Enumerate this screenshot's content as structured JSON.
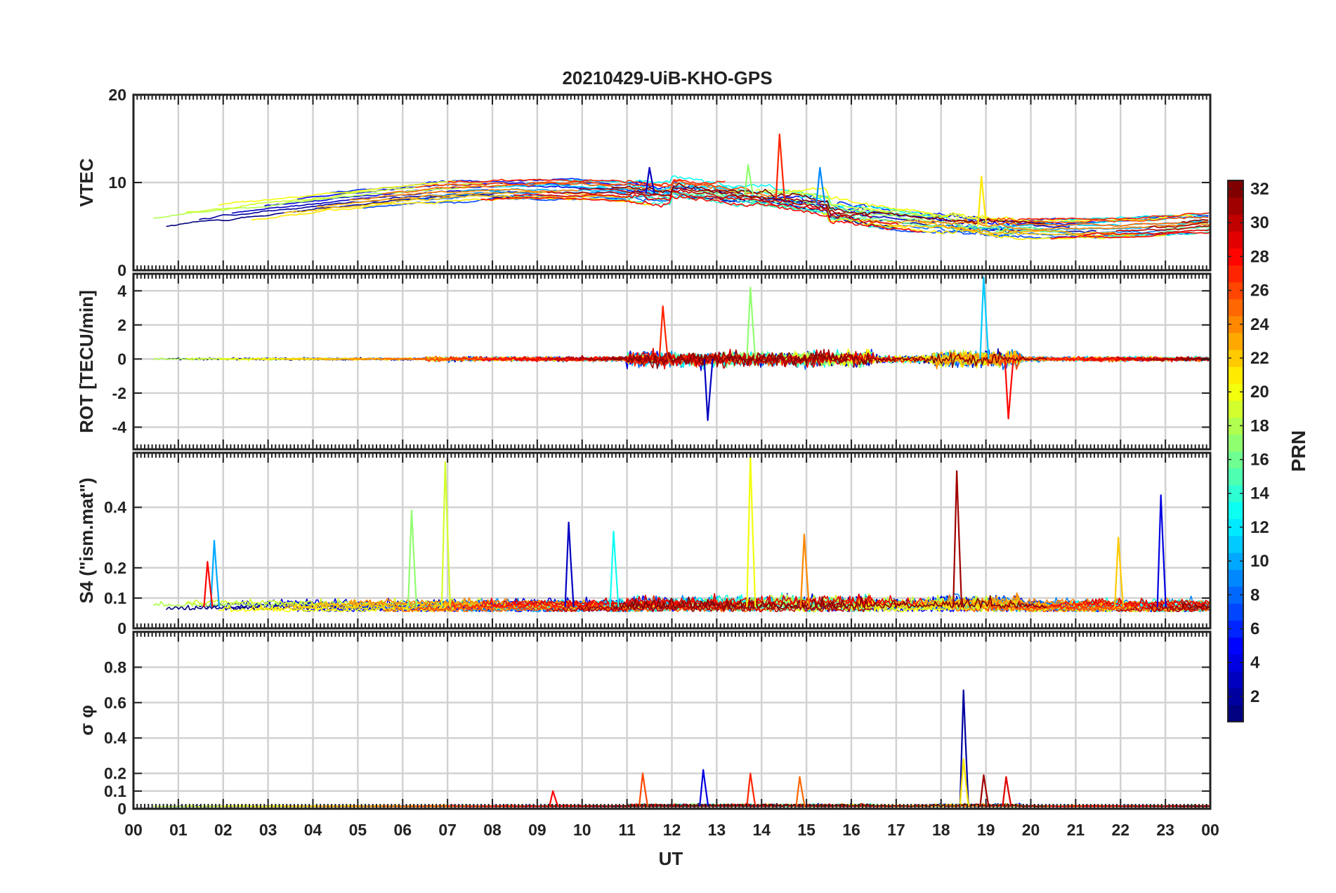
{
  "chart_data": {
    "type": "line",
    "title": "20210429-UiB-KHO-GPS",
    "xlabel": "UT",
    "x_ticks": [
      "00",
      "01",
      "02",
      "03",
      "04",
      "05",
      "06",
      "07",
      "08",
      "09",
      "10",
      "11",
      "12",
      "13",
      "14",
      "15",
      "16",
      "17",
      "18",
      "19",
      "20",
      "21",
      "22",
      "23",
      "00"
    ],
    "xlim_hours": [
      0,
      24
    ],
    "grid": true,
    "colorbar": {
      "label": "PRN",
      "range": [
        1,
        32
      ],
      "ticks": [
        "2",
        "4",
        "6",
        "8",
        "10",
        "12",
        "14",
        "16",
        "18",
        "20",
        "22",
        "24",
        "26",
        "28",
        "30",
        "32"
      ],
      "colormap": "jet",
      "location": "right"
    },
    "panels": [
      {
        "id": "vtec",
        "ylabel": "VTEC",
        "ylim": [
          0,
          20
        ],
        "yticks": [
          0,
          10,
          20
        ],
        "ytick_labels": [
          "0",
          "10",
          "20"
        ],
        "peaks": [
          {
            "x": 14.4,
            "y": 15.5,
            "prn": 27
          },
          {
            "x": 13.7,
            "y": 12.0,
            "prn": 17
          },
          {
            "x": 15.3,
            "y": 11.7,
            "prn": 9
          },
          {
            "x": 11.5,
            "y": 11.7,
            "prn": 3
          },
          {
            "x": 18.9,
            "y": 10.7,
            "prn": 21
          }
        ]
      },
      {
        "id": "rot",
        "ylabel": "ROT [TECU/min]",
        "ylim": [
          -5.3,
          5
        ],
        "yticks": [
          -4,
          -2,
          0,
          2,
          4
        ],
        "ytick_labels": [
          "-4",
          "-2",
          "0",
          "2",
          "4"
        ],
        "peaks": [
          {
            "x": 18.95,
            "y": 4.8,
            "prn": 11
          },
          {
            "x": 13.75,
            "y": 4.2,
            "prn": 17
          },
          {
            "x": 12.8,
            "y": -3.6,
            "prn": 3
          },
          {
            "x": 19.5,
            "y": -3.5,
            "prn": 28
          },
          {
            "x": 11.8,
            "y": 3.1,
            "prn": 27
          }
        ]
      },
      {
        "id": "s4",
        "ylabel": "S4 (\"ism.mat\")",
        "ylim": [
          0,
          0.58
        ],
        "yticks": [
          0,
          0.1,
          0.2,
          0.4
        ],
        "ytick_labels": [
          "0",
          "0.1",
          "0.2",
          "0.4"
        ],
        "peaks": [
          {
            "x": 13.75,
            "y": 0.57,
            "prn": 20
          },
          {
            "x": 6.95,
            "y": 0.55,
            "prn": 19
          },
          {
            "x": 18.35,
            "y": 0.52,
            "prn": 31
          },
          {
            "x": 22.9,
            "y": 0.44,
            "prn": 4
          },
          {
            "x": 6.2,
            "y": 0.39,
            "prn": 17
          },
          {
            "x": 9.7,
            "y": 0.35,
            "prn": 3
          },
          {
            "x": 10.7,
            "y": 0.32,
            "prn": 13
          },
          {
            "x": 14.95,
            "y": 0.31,
            "prn": 24
          },
          {
            "x": 21.95,
            "y": 0.3,
            "prn": 22
          },
          {
            "x": 1.8,
            "y": 0.29,
            "prn": 10
          },
          {
            "x": 1.65,
            "y": 0.22,
            "prn": 28
          }
        ]
      },
      {
        "id": "sigma_phi",
        "ylabel": "σ φ",
        "ylim": [
          0,
          1
        ],
        "yticks": [
          0,
          0.1,
          0.2,
          0.4,
          0.6,
          0.8
        ],
        "ytick_labels": [
          "0",
          "0.1",
          "0.2",
          "0.4",
          "0.6",
          "0.8"
        ],
        "peaks": [
          {
            "x": 18.5,
            "y": 0.67,
            "prn": 2
          },
          {
            "x": 18.5,
            "y": 0.28,
            "prn": 21
          },
          {
            "x": 12.7,
            "y": 0.22,
            "prn": 4
          },
          {
            "x": 13.75,
            "y": 0.2,
            "prn": 27
          },
          {
            "x": 11.35,
            "y": 0.2,
            "prn": 26
          },
          {
            "x": 18.95,
            "y": 0.19,
            "prn": 31
          },
          {
            "x": 14.85,
            "y": 0.18,
            "prn": 25
          },
          {
            "x": 19.45,
            "y": 0.18,
            "prn": 29
          },
          {
            "x": 9.35,
            "y": 0.1,
            "prn": 28
          }
        ]
      }
    ]
  }
}
